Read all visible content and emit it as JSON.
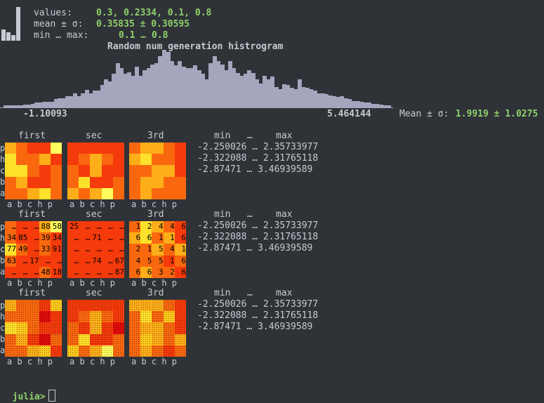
{
  "header": {
    "values_label": "values:",
    "values": "0.3, 0.2334, 0.1, 0.8",
    "mean_label": "mean ± σ:",
    "mean": "0.35835 ± 0.30595",
    "minmax_label": "min … max:",
    "minmax": "0.1 … 0.8",
    "ramp_values": [
      0.3,
      0.2334,
      0.1,
      0.8
    ]
  },
  "histogram": {
    "title": "Random num generation histrogram",
    "xmin_label": "-1.10093",
    "xmax_label": "5.464144",
    "mean_label": "Mean ± σ:",
    "mean_value": "1.9919 ± 1.0275",
    "bar_color": "#a4a6be"
  },
  "chart_data": {
    "type": "bar",
    "title": "Random num generation histrogram",
    "xlim": [
      -1.10093,
      5.464144
    ],
    "values": [
      0.02,
      0.02,
      0.02,
      0.02,
      0.02,
      0.03,
      0.03,
      0.04,
      0.05,
      0.05,
      0.06,
      0.06,
      0.06,
      0.09,
      0.1,
      0.1,
      0.12,
      0.12,
      0.15,
      0.12,
      0.15,
      0.19,
      0.15,
      0.18,
      0.18,
      0.24,
      0.3,
      0.28,
      0.36,
      0.48,
      0.42,
      0.36,
      0.38,
      0.34,
      0.44,
      0.34,
      0.4,
      0.42,
      0.46,
      0.48,
      0.55,
      0.62,
      0.6,
      0.5,
      0.45,
      0.5,
      0.44,
      0.42,
      0.42,
      0.45,
      0.4,
      0.36,
      0.3,
      0.48,
      0.55,
      0.5,
      0.46,
      0.4,
      0.5,
      0.42,
      0.37,
      0.34,
      0.36,
      0.4,
      0.37,
      0.3,
      0.26,
      0.34,
      0.3,
      0.33,
      0.22,
      0.2,
      0.25,
      0.24,
      0.21,
      0.2,
      0.3,
      0.22,
      0.21,
      0.2,
      0.18,
      0.15,
      0.15,
      0.14,
      0.13,
      0.12,
      0.11,
      0.12,
      0.1,
      0.09,
      0.07,
      0.07,
      0.06,
      0.05,
      0.05,
      0.04,
      0.04,
      0.03,
      0.02,
      0.02
    ]
  },
  "palette": {
    "pale": "#fffe5c",
    "yellow": "#ffe02a",
    "ylo": "#ffca1c",
    "lo": "#fdae18",
    "orange": "#fc8e14",
    "red_orange": "#f9680f",
    "red": "#f53a0b",
    "deep": "#e00b0b"
  },
  "panels": [
    {
      "titles": [
        "first",
        "sec",
        "3rd"
      ],
      "row_labels": [
        "p",
        "h",
        "c",
        "b",
        "a"
      ],
      "col_labels": [
        "a b c h p",
        "a b c h p",
        "a b c h p"
      ],
      "stats_header_min": "min",
      "stats_header_ellipsis": "…",
      "stats_header_max": "max",
      "stats": [
        "-2.250026 … 2.35733977",
        "-2.322088 … 2.31765118",
        "-2.87471 … 3.46939589"
      ],
      "maps": [
        {
          "colors": [
            [
              "lo",
              "red_orange",
              "red",
              "red",
              "pale"
            ],
            [
              "yellow",
              "red_orange",
              "red_orange",
              "lo",
              "red"
            ],
            [
              "yellow",
              "yellow",
              "red_orange",
              "red",
              "red_orange"
            ],
            [
              "red_orange",
              "lo",
              "red",
              "red",
              "red_orange"
            ],
            [
              "red_orange",
              "red_orange",
              "lo",
              "yellow",
              "red_orange"
            ]
          ],
          "text": [
            [
              "",
              "",
              "",
              "",
              ""
            ],
            [
              "",
              "",
              "",
              "",
              ""
            ],
            [
              "",
              "",
              "",
              "",
              ""
            ],
            [
              "",
              "",
              "",
              "",
              ""
            ],
            [
              "",
              "",
              "",
              "",
              ""
            ]
          ]
        },
        {
          "colors": [
            [
              "red",
              "red",
              "red",
              "red",
              "red"
            ],
            [
              "red",
              "red_orange",
              "lo",
              "red_orange",
              "red"
            ],
            [
              "red_orange",
              "red",
              "lo",
              "red",
              "red"
            ],
            [
              "red_orange",
              "yellow",
              "red",
              "red",
              "red_orange"
            ],
            [
              "lo",
              "red_orange",
              "lo",
              "pale",
              "red_orange"
            ]
          ],
          "text": [
            [
              "",
              "",
              "",
              "",
              ""
            ],
            [
              "",
              "",
              "",
              "",
              ""
            ],
            [
              "",
              "",
              "",
              "",
              ""
            ],
            [
              "",
              "",
              "",
              "",
              ""
            ],
            [
              "",
              "",
              "",
              "",
              ""
            ]
          ]
        },
        {
          "colors": [
            [
              "red_orange",
              "lo",
              "lo",
              "red_orange",
              "red"
            ],
            [
              "lo",
              "yellow",
              "red_orange",
              "red_orange",
              "red"
            ],
            [
              "red_orange",
              "red_orange",
              "lo",
              "lo",
              "red"
            ],
            [
              "red_orange",
              "lo",
              "lo",
              "red_orange",
              "red_orange"
            ],
            [
              "red_orange",
              "lo",
              "red_orange",
              "red_orange",
              "red_orange"
            ]
          ],
          "text": [
            [
              "",
              "",
              "",
              "",
              ""
            ],
            [
              "",
              "",
              "",
              "",
              ""
            ],
            [
              "",
              "",
              "",
              "",
              ""
            ],
            [
              "",
              "",
              "",
              "",
              ""
            ],
            [
              "",
              "",
              "",
              "",
              ""
            ]
          ]
        }
      ]
    },
    {
      "titles": [
        "first",
        "sec",
        "3rd"
      ],
      "row_labels": [
        "p",
        "h",
        "c",
        "b",
        "a"
      ],
      "col_labels": [
        "a b c h p",
        "a b c h p",
        "a b c h p"
      ],
      "stats_header_min": "min",
      "stats_header_ellipsis": "…",
      "stats_header_max": "max",
      "stats": [
        "-2.250026 … 2.35733977",
        "-2.322088 … 2.31765118",
        "-2.87471 … 3.46939589"
      ],
      "maps": [
        {
          "colors": [
            [
              "red_orange",
              "red",
              "red",
              "lo",
              "pale"
            ],
            [
              "red_orange",
              "red",
              "red",
              "red_orange",
              "red"
            ],
            [
              "yellow",
              "red_orange",
              "red",
              "red_orange",
              "red"
            ],
            [
              "red_orange",
              "red",
              "red",
              "red",
              "red"
            ],
            [
              "red",
              "red",
              "red",
              "red_orange",
              "red"
            ]
          ],
          "text": [
            [
              "…",
              "…",
              "…",
              "88",
              "58"
            ],
            [
              "34",
              "85",
              "…",
              "39",
              "34"
            ],
            [
              "77",
              "49",
              "…",
              "33",
              "91"
            ],
            [
              "63",
              "…",
              "17",
              "…",
              "…"
            ],
            [
              "…",
              "…",
              "…",
              "48",
              "18"
            ]
          ]
        },
        {
          "colors": [
            [
              "red",
              "red",
              "red",
              "red",
              "red"
            ],
            [
              "red",
              "red",
              "red",
              "red",
              "red"
            ],
            [
              "red",
              "red",
              "red",
              "red",
              "red"
            ],
            [
              "red",
              "red",
              "red",
              "red",
              "red"
            ],
            [
              "red",
              "red",
              "red",
              "red",
              "red"
            ]
          ],
          "text": [
            [
              "25",
              "…",
              "…",
              "…",
              "…"
            ],
            [
              "…",
              "…",
              "71",
              "…",
              "…"
            ],
            [
              "…",
              "…",
              "…",
              "…",
              "…"
            ],
            [
              "…",
              "…",
              "74",
              "…",
              "67"
            ],
            [
              "…",
              "…",
              "…",
              "…",
              "87"
            ]
          ]
        },
        {
          "colors": [
            [
              "red_orange",
              "yellow",
              "lo",
              "red_orange",
              "red"
            ],
            [
              "lo",
              "yellow",
              "red_orange",
              "lo",
              "red"
            ],
            [
              "red_orange",
              "red_orange",
              "lo",
              "red_orange",
              "lo"
            ],
            [
              "red_orange",
              "red_orange",
              "red_orange",
              "red",
              "red_orange"
            ],
            [
              "red_orange",
              "lo",
              "red_orange",
              "red_orange",
              "red"
            ]
          ],
          "text": [
            [
              "1",
              "2",
              "4",
              "4",
              "6"
            ],
            [
              "6",
              "6",
              "1",
              "1",
              "6"
            ],
            [
              "2",
              "1",
              "5",
              "4",
              "1"
            ],
            [
              "4",
              "5",
              "5",
              "1",
              "6"
            ],
            [
              "6",
              "6",
              "3",
              "2",
              "6"
            ]
          ]
        }
      ]
    },
    {
      "titles": [
        "first",
        "sec",
        "3rd"
      ],
      "row_labels": [
        "p",
        "h",
        "c",
        "b",
        "a"
      ],
      "col_labels": [
        "a b c h p",
        "a b c h p",
        "a b c h p"
      ],
      "stats_header_min": "min",
      "stats_header_ellipsis": "…",
      "stats_header_max": "max",
      "stats": [
        "-2.250026 … 2.35733977",
        "-2.322088 … 2.31765118",
        "-2.87471 … 3.46939589"
      ],
      "maps": [
        {
          "colors": [
            [
              "lo",
              "red_orange",
              "red_orange",
              "red",
              "ylo"
            ],
            [
              "red_orange",
              "red_orange",
              "red_orange",
              "deep",
              "red"
            ],
            [
              "yellow",
              "ylo",
              "red_orange",
              "red",
              "red"
            ],
            [
              "red_orange",
              "lo",
              "red",
              "deep",
              "red_orange"
            ],
            [
              "red_orange",
              "red_orange",
              "lo",
              "ylo",
              "red"
            ]
          ],
          "text": [
            [
              "",
              "",
              "",
              "",
              ""
            ],
            [
              "",
              "",
              "",
              "",
              ""
            ],
            [
              "",
              "",
              "",
              "",
              ""
            ],
            [
              "",
              "",
              "",
              "",
              ""
            ],
            [
              "",
              "",
              "",
              "",
              ""
            ]
          ]
        },
        {
          "colors": [
            [
              "red",
              "red",
              "red",
              "red",
              "red"
            ],
            [
              "red",
              "red_orange",
              "lo",
              "red_orange",
              "red"
            ],
            [
              "red_orange",
              "red",
              "lo",
              "red",
              "deep"
            ],
            [
              "red_orange",
              "yellow",
              "red",
              "red",
              "red_orange"
            ],
            [
              "ylo",
              "red_orange",
              "lo",
              "pale",
              "red_orange"
            ]
          ],
          "text": [
            [
              "",
              "",
              "",
              "",
              ""
            ],
            [
              "",
              "",
              "",
              "",
              ""
            ],
            [
              "",
              "",
              "",
              "",
              ""
            ],
            [
              "",
              "",
              "",
              "",
              ""
            ],
            [
              "",
              "",
              "",
              "",
              ""
            ]
          ]
        },
        {
          "colors": [
            [
              "lo",
              "lo",
              "lo",
              "red_orange",
              "red"
            ],
            [
              "red_orange",
              "yellow",
              "red_orange",
              "ylo",
              "red"
            ],
            [
              "red_orange",
              "lo",
              "lo",
              "red_orange",
              "red"
            ],
            [
              "red_orange",
              "ylo",
              "lo",
              "red_orange",
              "lo"
            ],
            [
              "red_orange",
              "lo",
              "red_orange",
              "red",
              "red_orange"
            ]
          ],
          "text": [
            [
              "",
              "",
              "",
              "",
              ""
            ],
            [
              "",
              "",
              "",
              "",
              ""
            ],
            [
              "",
              "",
              "",
              "",
              ""
            ],
            [
              "",
              "",
              "",
              "",
              ""
            ],
            [
              "",
              "",
              "",
              "",
              ""
            ]
          ]
        }
      ]
    }
  ],
  "prompt": {
    "text": "julia>"
  }
}
